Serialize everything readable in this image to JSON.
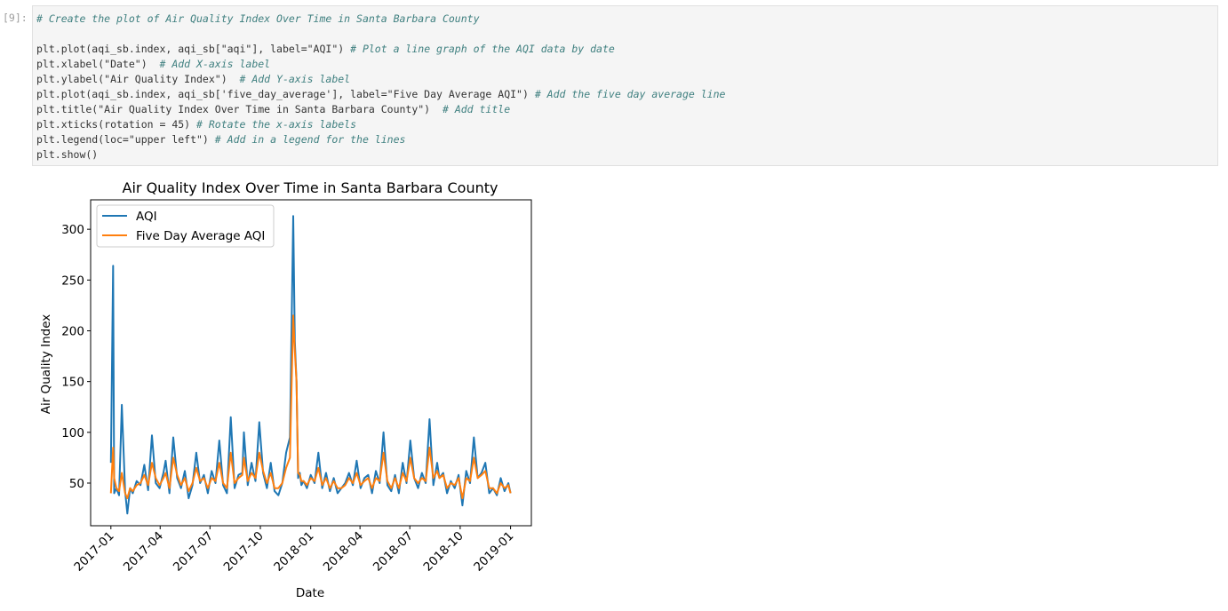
{
  "cell": {
    "prompt": "[9]:",
    "lines": [
      {
        "code": "",
        "comment": "# Create the plot of Air Quality Index Over Time in Santa Barbara County"
      },
      {
        "code": "",
        "comment": ""
      },
      {
        "code": "plt.plot(aqi_sb.index, aqi_sb[\"aqi\"], label=\"AQI\") ",
        "comment": "# Plot a line graph of the AQI data by date"
      },
      {
        "code": "plt.xlabel(\"Date\")  ",
        "comment": "# Add X-axis label"
      },
      {
        "code": "plt.ylabel(\"Air Quality Index\")  ",
        "comment": "# Add Y-axis label"
      },
      {
        "code": "plt.plot(aqi_sb.index, aqi_sb['five_day_average'], label=\"Five Day Average AQI\") ",
        "comment": "# Add the five day average line"
      },
      {
        "code": "plt.title(\"Air Quality Index Over Time in Santa Barbara County\")  ",
        "comment": "# Add title"
      },
      {
        "code": "plt.xticks(rotation = 45) ",
        "comment": "# Rotate the x-axis labels"
      },
      {
        "code": "plt.legend(loc=\"upper left\") ",
        "comment": "# Add in a legend for the lines"
      },
      {
        "code": "plt.show()",
        "comment": ""
      }
    ]
  },
  "chart_data": {
    "type": "line",
    "title": "Air Quality Index Over Time in Santa Barbara County",
    "x_label": "Date",
    "y_label": "Air Quality Index",
    "legend": "upper left",
    "xlim": [
      -37,
      768
    ],
    "ylim": [
      8,
      329
    ],
    "xticks": [
      {
        "value": 0,
        "label": "2017-01"
      },
      {
        "value": 90,
        "label": "2017-04"
      },
      {
        "value": 181,
        "label": "2017-07"
      },
      {
        "value": 273,
        "label": "2017-10"
      },
      {
        "value": 365,
        "label": "2018-01"
      },
      {
        "value": 455,
        "label": "2018-04"
      },
      {
        "value": 546,
        "label": "2018-07"
      },
      {
        "value": 638,
        "label": "2018-10"
      },
      {
        "value": 730,
        "label": "2019-01"
      }
    ],
    "yticks": [
      50,
      100,
      150,
      200,
      250,
      300
    ],
    "x": [
      0,
      4,
      6,
      10,
      15,
      20,
      26,
      30,
      35,
      40,
      47,
      54,
      61,
      68,
      75,
      82,
      89,
      96,
      100,
      107,
      114,
      121,
      128,
      135,
      142,
      149,
      156,
      163,
      170,
      177,
      184,
      191,
      198,
      205,
      212,
      219,
      226,
      233,
      240,
      243,
      250,
      257,
      264,
      271,
      278,
      285,
      292,
      299,
      306,
      313,
      320,
      327,
      333,
      336,
      339,
      342,
      345,
      348,
      352,
      358,
      365,
      372,
      379,
      386,
      393,
      400,
      407,
      414,
      421,
      428,
      435,
      442,
      449,
      456,
      463,
      470,
      477,
      484,
      491,
      498,
      505,
      512,
      519,
      526,
      533,
      540,
      547,
      554,
      561,
      568,
      575,
      582,
      589,
      596,
      600,
      607,
      614,
      621,
      628,
      635,
      642,
      649,
      656,
      663,
      670,
      677,
      684,
      691,
      698,
      705,
      712,
      719,
      726,
      730
    ],
    "series": [
      {
        "name": "AQI",
        "color": "#1f77b4",
        "values": [
          70,
          264,
          40,
          45,
          38,
          127,
          42,
          20,
          45,
          40,
          52,
          48,
          68,
          43,
          97,
          50,
          45,
          60,
          72,
          40,
          95,
          55,
          45,
          62,
          35,
          48,
          80,
          50,
          58,
          40,
          62,
          50,
          92,
          48,
          40,
          115,
          45,
          58,
          60,
          100,
          48,
          70,
          52,
          110,
          60,
          45,
          70,
          42,
          38,
          50,
          80,
          95,
          313,
          190,
          150,
          55,
          60,
          48,
          52,
          45,
          58,
          50,
          80,
          45,
          60,
          42,
          55,
          40,
          45,
          50,
          60,
          48,
          72,
          45,
          55,
          58,
          40,
          62,
          50,
          100,
          48,
          42,
          58,
          40,
          70,
          50,
          92,
          55,
          45,
          60,
          50,
          113,
          48,
          70,
          55,
          60,
          40,
          52,
          45,
          58,
          28,
          62,
          50,
          95,
          55,
          60,
          70,
          40,
          45,
          38,
          55,
          42,
          50,
          40
        ]
      },
      {
        "name": "Five Day Average AQI",
        "color": "#ff7f0e",
        "values": [
          40,
          85,
          55,
          45,
          42,
          60,
          40,
          35,
          45,
          42,
          48,
          50,
          58,
          48,
          70,
          55,
          48,
          55,
          60,
          45,
          75,
          58,
          48,
          55,
          42,
          50,
          65,
          52,
          55,
          45,
          55,
          52,
          70,
          50,
          45,
          80,
          50,
          55,
          58,
          75,
          52,
          60,
          55,
          80,
          62,
          50,
          60,
          45,
          45,
          50,
          65,
          75,
          215,
          180,
          150,
          60,
          58,
          52,
          52,
          48,
          55,
          52,
          65,
          48,
          55,
          45,
          52,
          45,
          45,
          48,
          55,
          50,
          60,
          48,
          52,
          55,
          45,
          55,
          52,
          80,
          52,
          45,
          55,
          45,
          60,
          52,
          75,
          55,
          50,
          55,
          52,
          85,
          55,
          62,
          55,
          58,
          45,
          50,
          48,
          55,
          35,
          55,
          52,
          75,
          55,
          58,
          62,
          45,
          45,
          40,
          50,
          45,
          48,
          40
        ]
      }
    ]
  }
}
